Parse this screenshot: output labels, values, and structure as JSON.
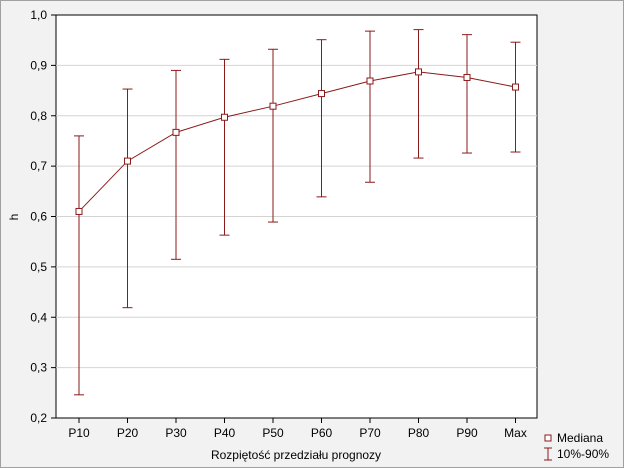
{
  "chart_data": {
    "type": "line",
    "title": "",
    "xlabel": "Rozpiętość przedziału prognozy",
    "ylabel": "h",
    "categories": [
      "P10",
      "P20",
      "P30",
      "P40",
      "P50",
      "P60",
      "P70",
      "P80",
      "P90",
      "Max"
    ],
    "ylim": [
      0.2,
      1.0
    ],
    "yticks": [
      "0,2",
      "0,3",
      "0,4",
      "0,5",
      "0,6",
      "0,7",
      "0,8",
      "0,9",
      "1,0"
    ],
    "grid": true,
    "legend_position": "bottom-right",
    "series": [
      {
        "name": "Mediana",
        "values": [
          0.61,
          0.71,
          0.767,
          0.797,
          0.819,
          0.844,
          0.869,
          0.887,
          0.876,
          0.857
        ]
      }
    ],
    "error_bars": {
      "name": "10%-90%",
      "low": [
        0.246,
        0.419,
        0.515,
        0.563,
        0.589,
        0.639,
        0.668,
        0.716,
        0.726,
        0.728
      ],
      "high": [
        0.76,
        0.853,
        0.89,
        0.912,
        0.932,
        0.951,
        0.968,
        0.971,
        0.961,
        0.946
      ]
    },
    "colors": {
      "line": "#8b1a1a",
      "grid": "#d4d4d4",
      "plot_bg": "#ffffff",
      "frame_bg": "#f2f2f2"
    }
  }
}
